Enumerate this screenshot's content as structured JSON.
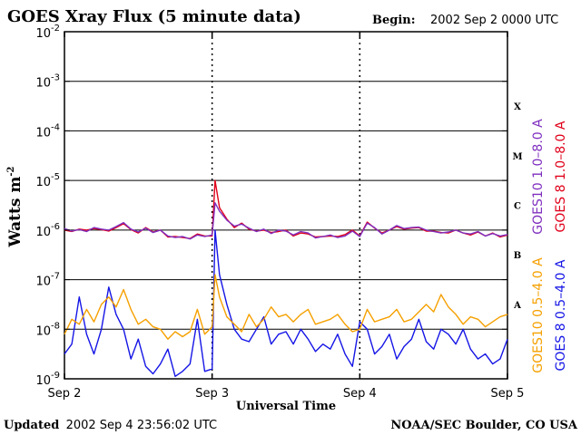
{
  "chart_data": {
    "type": "line",
    "title": "GOES Xray Flux (5 minute data)",
    "begin_label": "Begin:",
    "begin_value": "2002 Sep 2 0000 UTC",
    "ylabel": "Watts m",
    "ylabel_sup": "-2",
    "xlabel": "Universal Time",
    "yscale": "log",
    "ylim_exponents": [
      -9,
      -2
    ],
    "y_ticks": [
      {
        "base": "10",
        "exp": "-2",
        "value": -2
      },
      {
        "base": "10",
        "exp": "-3",
        "value": -3
      },
      {
        "base": "10",
        "exp": "-4",
        "value": -4
      },
      {
        "base": "10",
        "exp": "-5",
        "value": -5
      },
      {
        "base": "10",
        "exp": "-6",
        "value": -6
      },
      {
        "base": "10",
        "exp": "-7",
        "value": -7
      },
      {
        "base": "10",
        "exp": "-8",
        "value": -8
      },
      {
        "base": "10",
        "exp": "-9",
        "value": -9
      }
    ],
    "x_days": [
      0,
      1,
      2,
      3
    ],
    "x_tick_labels": [
      "Sep 2",
      "Sep 3",
      "Sep 4",
      "Sep 5"
    ],
    "class_labels": [
      {
        "label": "X",
        "value": -3.5
      },
      {
        "label": "M",
        "value": -4.5
      },
      {
        "label": "C",
        "value": -5.5
      },
      {
        "label": "B",
        "value": -6.5
      },
      {
        "label": "A",
        "value": -7.5
      }
    ],
    "series": [
      {
        "name": "GOES10 1.0-8.0 A",
        "legend": "GOES10 1.0–8.0 A",
        "color": "#7f2fbf",
        "x": [
          0,
          0.05,
          0.1,
          0.15,
          0.2,
          0.25,
          0.3,
          0.35,
          0.4,
          0.45,
          0.5,
          0.55,
          0.6,
          0.65,
          0.7,
          0.75,
          0.8,
          0.85,
          0.9,
          0.95,
          1.0,
          1.02,
          1.05,
          1.1,
          1.15,
          1.2,
          1.25,
          1.3,
          1.35,
          1.4,
          1.45,
          1.5,
          1.55,
          1.6,
          1.65,
          1.7,
          1.75,
          1.8,
          1.85,
          1.9,
          1.95,
          2.0,
          2.05,
          2.1,
          2.15,
          2.2,
          2.25,
          2.3,
          2.35,
          2.4,
          2.45,
          2.5,
          2.55,
          2.6,
          2.65,
          2.7,
          2.75,
          2.8,
          2.85,
          2.9,
          2.95,
          3.0
        ],
        "y": [
          -5.97,
          -6.02,
          -5.99,
          -6.03,
          -5.95,
          -5.98,
          -6.0,
          -5.93,
          -5.85,
          -5.98,
          -6.04,
          -5.96,
          -6.05,
          -6.0,
          -6.12,
          -6.15,
          -6.13,
          -6.18,
          -6.1,
          -6.13,
          -6.1,
          -5.45,
          -5.62,
          -5.8,
          -5.92,
          -5.88,
          -5.96,
          -6.03,
          -5.98,
          -6.07,
          -6.0,
          -6.02,
          -6.1,
          -6.03,
          -6.06,
          -6.16,
          -6.13,
          -6.1,
          -6.15,
          -6.12,
          -6.02,
          -6.13,
          -5.86,
          -5.95,
          -6.08,
          -6.0,
          -5.91,
          -5.97,
          -5.95,
          -5.94,
          -6.0,
          -6.03,
          -6.06,
          -6.04,
          -6.0,
          -6.06,
          -6.08,
          -6.03,
          -6.12,
          -6.07,
          -6.12,
          -6.09
        ]
      },
      {
        "name": "GOES 8 1.0-8.0 A",
        "legend": "GOES 8 1.0–8.0 A",
        "color": "#e0001a",
        "x": [
          0,
          0.05,
          0.1,
          0.15,
          0.2,
          0.25,
          0.3,
          0.35,
          0.4,
          0.45,
          0.5,
          0.55,
          0.6,
          0.65,
          0.7,
          0.75,
          0.8,
          0.85,
          0.9,
          0.95,
          1.0,
          1.02,
          1.05,
          1.1,
          1.15,
          1.2,
          1.25,
          1.3,
          1.35,
          1.4,
          1.45,
          1.5,
          1.55,
          1.6,
          1.65,
          1.7,
          1.75,
          1.8,
          1.85,
          1.9,
          1.95,
          2.0,
          2.05,
          2.1,
          2.15,
          2.2,
          2.25,
          2.3,
          2.35,
          2.4,
          2.45,
          2.5,
          2.55,
          2.6,
          2.65,
          2.7,
          2.75,
          2.8,
          2.85,
          2.9,
          2.95,
          3.0
        ],
        "y": [
          -6.0,
          -6.03,
          -5.98,
          -6.0,
          -5.97,
          -5.99,
          -6.02,
          -5.95,
          -5.87,
          -5.99,
          -6.06,
          -5.95,
          -6.04,
          -6.0,
          -6.14,
          -6.13,
          -6.15,
          -6.17,
          -6.08,
          -6.12,
          -6.12,
          -5.0,
          -5.55,
          -5.78,
          -5.95,
          -5.86,
          -5.98,
          -6.02,
          -6.0,
          -6.05,
          -6.03,
          -6.0,
          -6.12,
          -6.06,
          -6.08,
          -6.14,
          -6.13,
          -6.12,
          -6.13,
          -6.09,
          -6.0,
          -6.12,
          -5.84,
          -5.96,
          -6.06,
          -6.0,
          -5.93,
          -5.98,
          -5.96,
          -5.95,
          -6.02,
          -6.02,
          -6.05,
          -6.06,
          -6.0,
          -6.06,
          -6.1,
          -6.04,
          -6.12,
          -6.06,
          -6.14,
          -6.1
        ]
      },
      {
        "name": "GOES10 0.5-4.0 A",
        "legend": "GOES10 0.5–4.0 A",
        "color": "#f5a000",
        "x": [
          0,
          0.05,
          0.1,
          0.15,
          0.2,
          0.25,
          0.3,
          0.35,
          0.4,
          0.45,
          0.5,
          0.55,
          0.6,
          0.65,
          0.7,
          0.75,
          0.8,
          0.85,
          0.9,
          0.95,
          1.0,
          1.02,
          1.05,
          1.1,
          1.15,
          1.2,
          1.25,
          1.3,
          1.35,
          1.4,
          1.45,
          1.5,
          1.55,
          1.6,
          1.65,
          1.7,
          1.75,
          1.8,
          1.85,
          1.9,
          1.95,
          2.0,
          2.05,
          2.1,
          2.15,
          2.2,
          2.25,
          2.3,
          2.35,
          2.4,
          2.45,
          2.5,
          2.55,
          2.6,
          2.65,
          2.7,
          2.75,
          2.8,
          2.85,
          2.9,
          2.95,
          3.0
        ],
        "y": [
          -8.1,
          -7.8,
          -7.9,
          -7.6,
          -7.85,
          -7.5,
          -7.35,
          -7.55,
          -7.2,
          -7.6,
          -7.9,
          -7.8,
          -7.95,
          -8.0,
          -8.2,
          -8.05,
          -8.15,
          -8.05,
          -7.6,
          -8.1,
          -7.95,
          -6.9,
          -7.35,
          -7.75,
          -7.9,
          -8.05,
          -7.7,
          -7.95,
          -7.8,
          -7.55,
          -7.75,
          -7.7,
          -7.85,
          -7.7,
          -7.6,
          -7.9,
          -7.85,
          -7.8,
          -7.7,
          -7.9,
          -8.05,
          -8.0,
          -7.6,
          -7.85,
          -7.8,
          -7.75,
          -7.6,
          -7.85,
          -7.8,
          -7.65,
          -7.5,
          -7.65,
          -7.3,
          -7.55,
          -7.7,
          -7.9,
          -7.75,
          -7.8,
          -7.95,
          -7.85,
          -7.75,
          -7.7
        ]
      },
      {
        "name": "GOES 8 0.5-4.0 A",
        "legend": "GOES 8 0.5–4.0 A",
        "color": "#1515e6",
        "x": [
          0,
          0.05,
          0.1,
          0.15,
          0.2,
          0.25,
          0.3,
          0.35,
          0.4,
          0.45,
          0.5,
          0.55,
          0.6,
          0.65,
          0.7,
          0.75,
          0.8,
          0.85,
          0.9,
          0.95,
          1.0,
          1.02,
          1.05,
          1.1,
          1.15,
          1.2,
          1.25,
          1.3,
          1.35,
          1.4,
          1.45,
          1.5,
          1.55,
          1.6,
          1.65,
          1.7,
          1.75,
          1.8,
          1.85,
          1.9,
          1.95,
          2.0,
          2.05,
          2.1,
          2.15,
          2.2,
          2.25,
          2.3,
          2.35,
          2.4,
          2.45,
          2.5,
          2.55,
          2.6,
          2.65,
          2.7,
          2.75,
          2.8,
          2.85,
          2.9,
          2.95,
          3.0
        ],
        "y": [
          -8.5,
          -8.3,
          -7.35,
          -8.1,
          -8.5,
          -8.0,
          -7.15,
          -7.7,
          -8.0,
          -8.6,
          -8.2,
          -8.75,
          -8.9,
          -8.7,
          -8.4,
          -8.95,
          -8.85,
          -8.7,
          -7.8,
          -8.85,
          -8.8,
          -6.0,
          -6.9,
          -7.5,
          -8.0,
          -8.2,
          -8.25,
          -8.0,
          -7.75,
          -8.3,
          -8.1,
          -8.05,
          -8.3,
          -8.0,
          -8.2,
          -8.45,
          -8.3,
          -8.4,
          -8.1,
          -8.5,
          -8.75,
          -7.85,
          -8.0,
          -8.5,
          -8.35,
          -8.1,
          -8.6,
          -8.35,
          -8.2,
          -7.8,
          -8.25,
          -8.4,
          -8.0,
          -8.1,
          -8.3,
          -8.0,
          -8.4,
          -8.6,
          -8.5,
          -8.7,
          -8.6,
          -8.2
        ]
      }
    ]
  },
  "footer": {
    "updated_label": "Updated",
    "updated_value": "2002 Sep  4 23:56:02 UTC",
    "credit": "NOAA/SEC Boulder, CO USA"
  }
}
